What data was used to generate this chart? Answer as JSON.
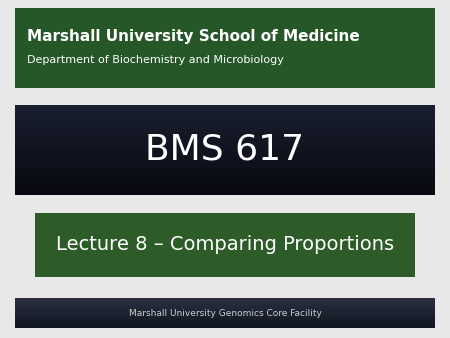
{
  "bg_color": "#e8e8e8",
  "header_bg": "#265728",
  "header_title": "Marshall University School of Medicine",
  "header_subtitle": "Department of Biochemistry and Microbiology",
  "header_title_color": "#ffffff",
  "header_subtitle_color": "#ffffff",
  "header_title_fontsize": 11,
  "header_subtitle_fontsize": 8,
  "bms_grad_top": "#1a2030",
  "bms_grad_bottom": "#080810",
  "bms_text": "BMS 617",
  "bms_text_color": "#ffffff",
  "bms_fontsize": 26,
  "lecture_box_bg": "#2d5c28",
  "lecture_text": "Lecture 8 – Comparing Proportions",
  "lecture_text_color": "#ffffff",
  "lecture_fontsize": 14,
  "footer_grad_top": "#2a3040",
  "footer_grad_bottom": "#101520",
  "footer_text": "Marshall University Genomics Core Facility",
  "footer_text_color": "#cccccc",
  "footer_fontsize": 6.5
}
